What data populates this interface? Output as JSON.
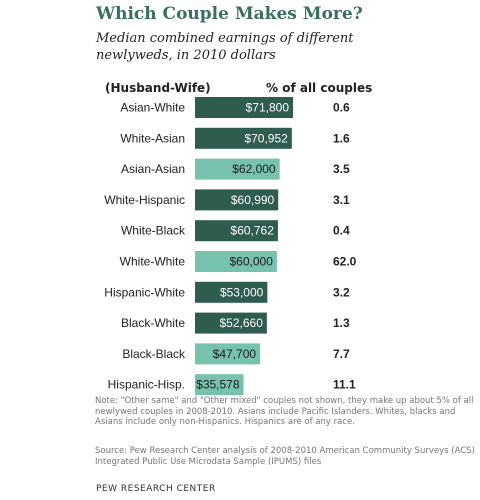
{
  "title": "Which Couple Makes More?",
  "subtitle": "Median combined earnings of different newlyweds, in 2010 dollars",
  "column_left": "(Husband-Wife)",
  "column_right": "% of all couples",
  "note": "Note: \"Other same\" and \"Other mixed\" couples not shown, they make up about 5% of all newlywed couples in 2008-2010. Asians include Pacific Islanders. Whites, blacks and Asians include only non-Hispanics. Hispanics are of any race.",
  "source": "Source: Pew Research Center analysis of 2008-2010 American Community Surveys (ACS) Integrated Public Use Microdata Sample (IPUMS) files",
  "credit": "PEW RESEARCH CENTER",
  "colors": {
    "mixed": "#2e5c4f",
    "same": "#76c2ad",
    "title": "#3a6f60"
  },
  "chart_data": {
    "type": "bar",
    "orientation": "horizontal",
    "categories": [
      "Asian-White",
      "White-Asian",
      "Asian-Asian",
      "White-Hispanic",
      "White-Black",
      "White-White",
      "Hispanic-White",
      "Black-White",
      "Black-Black",
      "Hispanic-Hisp."
    ],
    "values": [
      71800,
      70952,
      62000,
      60990,
      60762,
      60000,
      53000,
      52660,
      47700,
      35578
    ],
    "value_labels": [
      "$71,800",
      "$70,952",
      "$62,000",
      "$60,990",
      "$60,762",
      "$60,000",
      "$53,000",
      "$52,660",
      "$47,700",
      "$35,578"
    ],
    "share_labels": [
      "0.6",
      "1.6",
      "3.5",
      "3.1",
      "0.4",
      "62.0",
      "3.2",
      "1.3",
      "7.7",
      "11.1"
    ],
    "same_race": [
      false,
      false,
      true,
      false,
      false,
      true,
      false,
      false,
      true,
      true
    ],
    "xlim": [
      0,
      71800
    ]
  }
}
